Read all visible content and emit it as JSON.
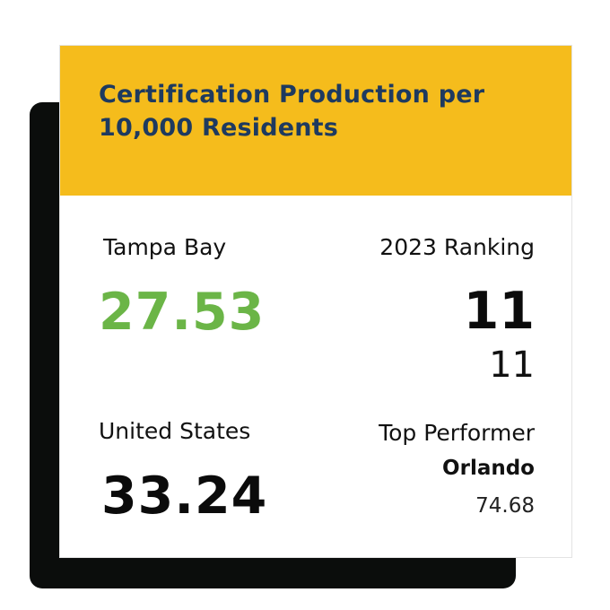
{
  "colors": {
    "header_bg": "#F5BC1C",
    "title_text": "#1E3A5F",
    "highlight_green": "#6BB547",
    "shadow": "#0B0D0C",
    "card_bg": "#FFFFFF"
  },
  "header": {
    "title": "Certification Production per 10,000 Residents"
  },
  "tampa_bay": {
    "label": "Tampa Bay",
    "value": "27.53"
  },
  "ranking": {
    "label": "2023 Ranking",
    "rank": "11",
    "secondary": "11"
  },
  "united_states": {
    "label": "United States",
    "value": "33.24"
  },
  "top_performer": {
    "label": "Top Performer",
    "city": "Orlando",
    "value": "74.68"
  }
}
